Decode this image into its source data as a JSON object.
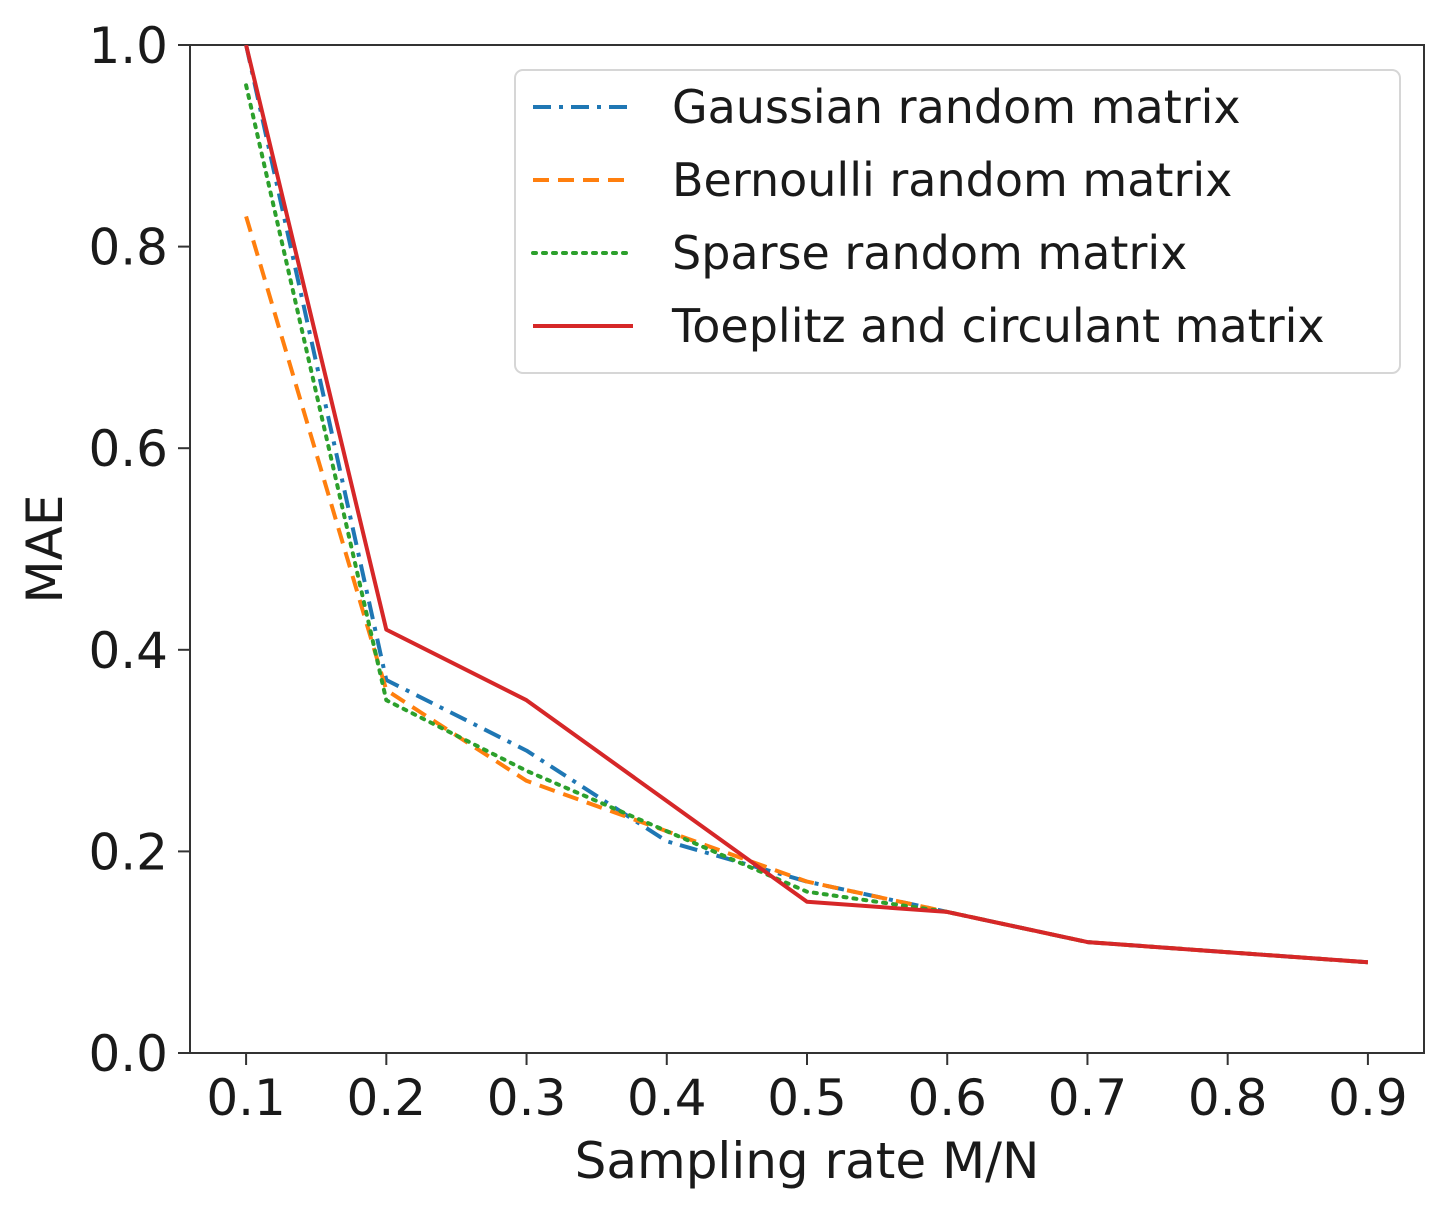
{
  "chart_data": {
    "type": "line",
    "title": "",
    "xlabel": "Sampling rate M/N",
    "ylabel": "MAE",
    "x": [
      0.1,
      0.2,
      0.3,
      0.4,
      0.5,
      0.6,
      0.7,
      0.8,
      0.9
    ],
    "xticks": [
      "0.1",
      "0.2",
      "0.3",
      "0.4",
      "0.5",
      "0.6",
      "0.7",
      "0.8",
      "0.9"
    ],
    "yticks": [
      "0.0",
      "0.2",
      "0.4",
      "0.6",
      "0.8",
      "1.0"
    ],
    "xlim": [
      0.06,
      0.94
    ],
    "ylim": [
      0.0,
      1.0
    ],
    "grid": false,
    "legend_position": "top-right",
    "series": [
      {
        "name": "Gaussian random matrix",
        "color": "#1f77b4",
        "dash": "dashdot",
        "values": [
          1.0,
          0.37,
          0.3,
          0.21,
          0.17,
          0.14,
          0.11,
          0.1,
          0.09
        ]
      },
      {
        "name": "Bernoulli random matrix",
        "color": "#ff7f0e",
        "dash": "dashed",
        "values": [
          0.83,
          0.36,
          0.27,
          0.22,
          0.17,
          0.14,
          0.11,
          0.1,
          0.09
        ]
      },
      {
        "name": "Sparse random matrix",
        "color": "#2ca02c",
        "dash": "dotted",
        "values": [
          0.96,
          0.35,
          0.28,
          0.22,
          0.16,
          0.14,
          0.11,
          0.1,
          0.09
        ]
      },
      {
        "name": "Toeplitz and circulant matrix",
        "color": "#d62728",
        "dash": "solid",
        "values": [
          1.0,
          0.42,
          0.35,
          0.25,
          0.15,
          0.14,
          0.11,
          0.1,
          0.09
        ]
      }
    ]
  }
}
